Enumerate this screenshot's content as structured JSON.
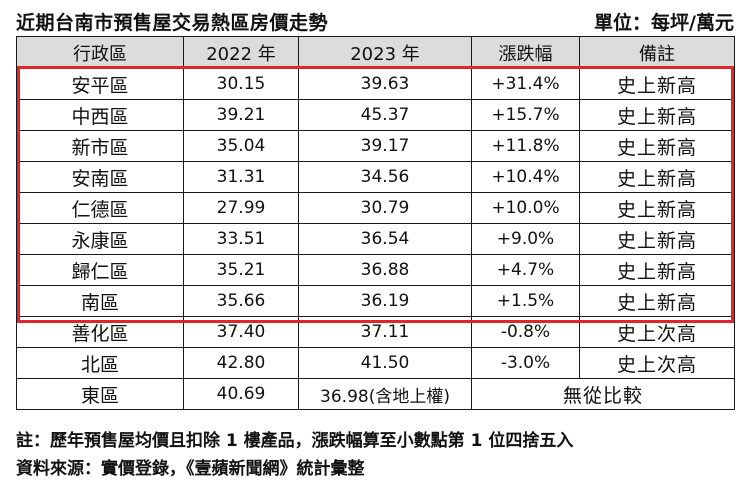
{
  "title": "近期台南市預售屋交易熱區房價走勢",
  "unit": "單位：每坪/萬元",
  "columns": [
    "行政區",
    "2022 年",
    "2023 年",
    "漲跌幅",
    "備註"
  ],
  "rows": [
    {
      "district": "安平區",
      "y2022": "30.15",
      "y2023": "39.63",
      "change": "+31.4%",
      "note": "史上新高"
    },
    {
      "district": "中西區",
      "y2022": "39.21",
      "y2023": "45.37",
      "change": "+15.7%",
      "note": "史上新高"
    },
    {
      "district": "新市區",
      "y2022": "35.04",
      "y2023": "39.17",
      "change": "+11.8%",
      "note": "史上新高"
    },
    {
      "district": "安南區",
      "y2022": "31.31",
      "y2023": "34.56",
      "change": "+10.4%",
      "note": "史上新高"
    },
    {
      "district": "仁德區",
      "y2022": "27.99",
      "y2023": "30.79",
      "change": "+10.0%",
      "note": "史上新高"
    },
    {
      "district": "永康區",
      "y2022": "33.51",
      "y2023": "36.54",
      "change": "+9.0%",
      "note": "史上新高"
    },
    {
      "district": "歸仁區",
      "y2022": "35.21",
      "y2023": "36.88",
      "change": "+4.7%",
      "note": "史上新高"
    },
    {
      "district": "南區",
      "y2022": "35.66",
      "y2023": "36.19",
      "change": "+1.5%",
      "note": "史上新高"
    },
    {
      "district": "善化區",
      "y2022": "37.40",
      "y2023": "37.11",
      "change": "-0.8%",
      "note": "史上次高"
    },
    {
      "district": "北區",
      "y2022": "42.80",
      "y2023": "41.50",
      "change": "-3.0%",
      "note": "史上次高"
    }
  ],
  "last_row": {
    "district": "東區",
    "y2022": "40.69",
    "y2023": "36.98(含地上權)",
    "note": "無從比較"
  },
  "footnote": "註：歷年預售屋均價且扣除 1 樓產品，漲跌幅算至小數點第 1 位四捨五入",
  "source": "資料來源：實價登錄，《壹蘋新聞網》統計彙整",
  "colors": {
    "header_bg": "#dcdcdc",
    "highlight_border": "#e0262b",
    "grid": "#1a1a1a"
  }
}
